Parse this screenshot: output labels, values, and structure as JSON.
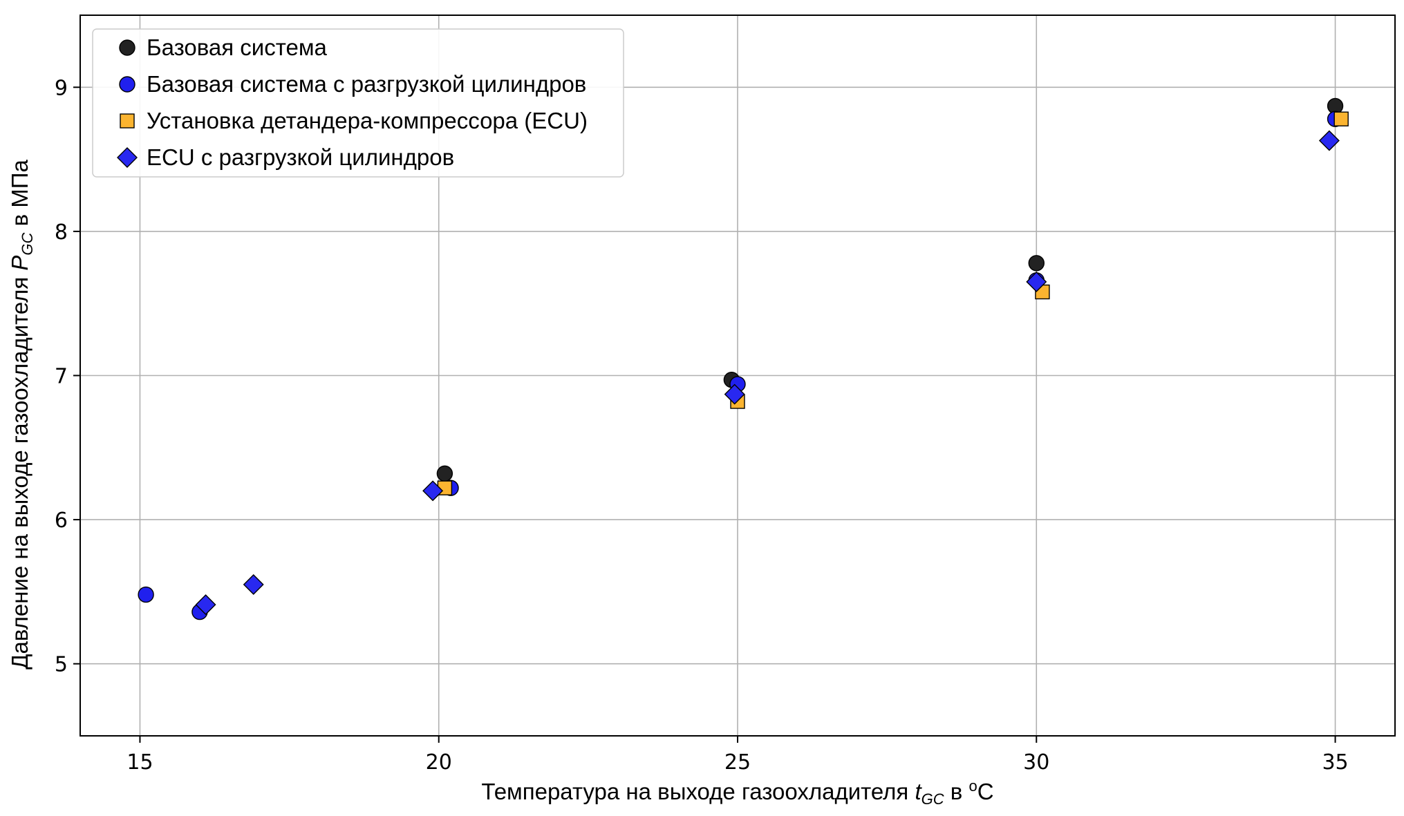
{
  "chart_data": {
    "type": "scatter",
    "xlabel": {
      "prefix": "Температура на выходе газоохладителя ",
      "var": "t",
      "sub": "GC",
      "suffix_pre": " в ",
      "sup": "o",
      "suffix_post": "C"
    },
    "ylabel": {
      "prefix": "Давление на выходе газоохладителя ",
      "var": "P",
      "sub": "GC",
      "suffix": " в МПа"
    },
    "xlim": [
      14,
      36
    ],
    "ylim": [
      4.5,
      9.5
    ],
    "xticks": [
      15,
      20,
      25,
      30,
      35
    ],
    "yticks": [
      5,
      6,
      7,
      8,
      9
    ],
    "grid": true,
    "legend_position": "top-left",
    "series": [
      {
        "name": "Базовая система",
        "marker": "circle",
        "color": "#222222",
        "points": [
          [
            20.1,
            6.32
          ],
          [
            24.9,
            6.97
          ],
          [
            30.0,
            7.78
          ],
          [
            35.0,
            8.87
          ]
        ]
      },
      {
        "name": "Базовая система с разгрузкой цилиндров",
        "marker": "circle",
        "color": "#2020ee",
        "points": [
          [
            15.1,
            5.48
          ],
          [
            16.0,
            5.36
          ],
          [
            20.2,
            6.22
          ],
          [
            25.0,
            6.94
          ],
          [
            30.0,
            7.66
          ],
          [
            35.0,
            8.78
          ]
        ]
      },
      {
        "name": "Установка детандера-компрессора (ECU)",
        "marker": "square",
        "color": "#fbb430",
        "points": [
          [
            20.1,
            6.22
          ],
          [
            25.0,
            6.82
          ],
          [
            30.1,
            7.58
          ],
          [
            35.1,
            8.78
          ]
        ]
      },
      {
        "name": "ECU с разгрузкой цилиндров",
        "marker": "diamond",
        "color": "#2828f0",
        "points": [
          [
            16.1,
            5.41
          ],
          [
            16.9,
            5.55
          ],
          [
            19.9,
            6.2
          ],
          [
            24.95,
            6.87
          ],
          [
            30.0,
            7.65
          ],
          [
            34.9,
            8.63
          ]
        ]
      }
    ]
  }
}
